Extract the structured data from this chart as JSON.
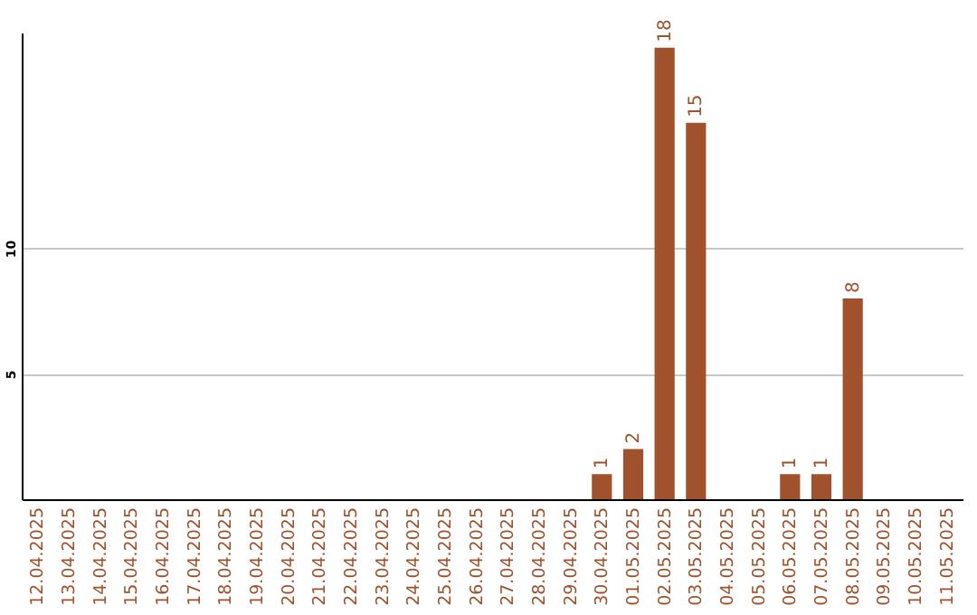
{
  "chart_data": {
    "type": "bar",
    "categories": [
      "12.04.2025",
      "13.04.2025",
      "14.04.2025",
      "15.04.2025",
      "16.04.2025",
      "17.04.2025",
      "18.04.2025",
      "19.04.2025",
      "20.04.2025",
      "21.04.2025",
      "22.04.2025",
      "23.04.2025",
      "24.04.2025",
      "25.04.2025",
      "26.04.2025",
      "27.04.2025",
      "28.04.2025",
      "29.04.2025",
      "30.04.2025",
      "01.05.2025",
      "02.05.2025",
      "03.05.2025",
      "04.05.2025",
      "05.05.2025",
      "06.05.2025",
      "07.05.2025",
      "08.05.2025",
      "09.05.2025",
      "10.05.2025",
      "11.05.2025"
    ],
    "values": [
      0,
      0,
      0,
      0,
      0,
      0,
      0,
      0,
      0,
      0,
      0,
      0,
      0,
      0,
      0,
      0,
      0,
      0,
      1,
      2,
      18,
      15,
      0,
      0,
      1,
      1,
      8,
      0,
      0,
      0
    ],
    "value_labels": [
      null,
      null,
      null,
      null,
      null,
      null,
      null,
      null,
      null,
      null,
      null,
      null,
      null,
      null,
      null,
      null,
      null,
      null,
      "1",
      "2",
      "18",
      "15",
      null,
      null,
      "1",
      "1",
      "8",
      null,
      null,
      null
    ],
    "color": "#a0522d",
    "ylim": [
      0,
      18.6
    ],
    "yticks": [
      5,
      10
    ],
    "grid": "y"
  }
}
